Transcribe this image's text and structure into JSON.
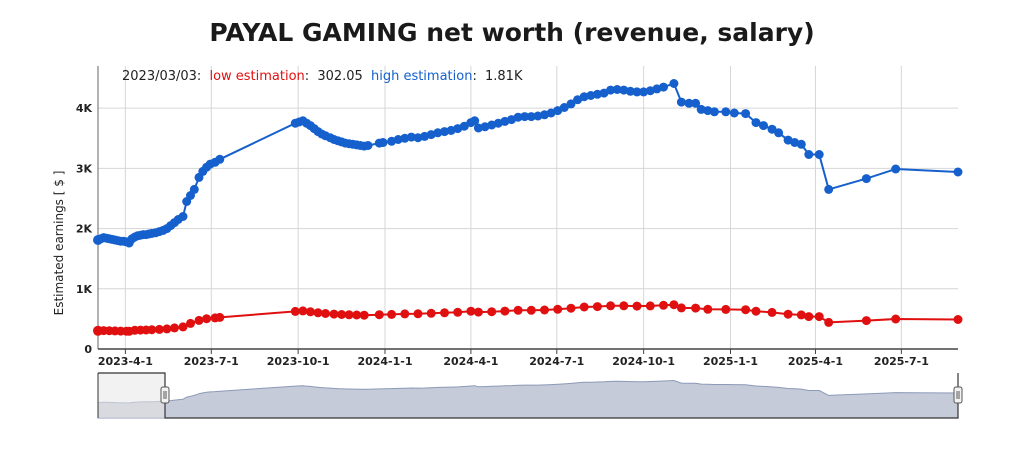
{
  "chart_data": {
    "type": "line",
    "title": "PAYAL GAMING net worth (revenue, salary)",
    "ylabel": "Estimated earnings [ $ ]",
    "ylim": [
      0,
      4700
    ],
    "y_ticks": [
      0,
      1000,
      2000,
      3000,
      4000
    ],
    "y_tick_labels": [
      "0",
      "1K",
      "2K",
      "3K",
      "4K"
    ],
    "xlim": [
      "2023-03-03",
      "2025-08-30"
    ],
    "x_ticks": [
      "2023-04-01",
      "2023-07-01",
      "2023-10-01",
      "2024-01-01",
      "2024-04-01",
      "2024-07-01",
      "2024-10-01",
      "2025-01-01",
      "2025-04-01",
      "2025-07-01"
    ],
    "x_tick_labels": [
      "2023-4-1",
      "2023-7-1",
      "2023-10-1",
      "2024-1-1",
      "2024-4-1",
      "2024-7-1",
      "2024-10-1",
      "2025-1-1",
      "2025-4-1",
      "2025-7-1"
    ],
    "grid": true,
    "legend": {
      "date": "2023/03/03:",
      "low_label": "low estimation",
      "low_value": "302.05",
      "high_label": "high estimation",
      "high_value": "1.81K"
    },
    "series": [
      {
        "name": "high estimation",
        "color": "#1560cc",
        "points": [
          [
            "2023-03-03",
            1810
          ],
          [
            "2023-03-06",
            1830
          ],
          [
            "2023-03-09",
            1850
          ],
          [
            "2023-03-12",
            1840
          ],
          [
            "2023-03-15",
            1830
          ],
          [
            "2023-03-18",
            1820
          ],
          [
            "2023-03-21",
            1810
          ],
          [
            "2023-03-24",
            1800
          ],
          [
            "2023-03-27",
            1790
          ],
          [
            "2023-03-30",
            1790
          ],
          [
            "2023-04-02",
            1780
          ],
          [
            "2023-04-05",
            1760
          ],
          [
            "2023-04-08",
            1830
          ],
          [
            "2023-04-11",
            1860
          ],
          [
            "2023-04-14",
            1880
          ],
          [
            "2023-04-17",
            1890
          ],
          [
            "2023-04-20",
            1900
          ],
          [
            "2023-04-23",
            1900
          ],
          [
            "2023-04-26",
            1910
          ],
          [
            "2023-04-29",
            1920
          ],
          [
            "2023-05-03",
            1930
          ],
          [
            "2023-05-07",
            1950
          ],
          [
            "2023-05-11",
            1970
          ],
          [
            "2023-05-15",
            2000
          ],
          [
            "2023-05-19",
            2050
          ],
          [
            "2023-05-23",
            2100
          ],
          [
            "2023-05-27",
            2150
          ],
          [
            "2023-06-01",
            2200
          ],
          [
            "2023-06-05",
            2450
          ],
          [
            "2023-06-09",
            2550
          ],
          [
            "2023-06-13",
            2650
          ],
          [
            "2023-06-18",
            2850
          ],
          [
            "2023-06-22",
            2950
          ],
          [
            "2023-06-26",
            3020
          ],
          [
            "2023-06-30",
            3070
          ],
          [
            "2023-07-05",
            3100
          ],
          [
            "2023-07-10",
            3150
          ],
          [
            "2023-09-28",
            3750
          ],
          [
            "2023-10-02",
            3770
          ],
          [
            "2023-10-06",
            3790
          ],
          [
            "2023-10-10",
            3750
          ],
          [
            "2023-10-14",
            3710
          ],
          [
            "2023-10-18",
            3660
          ],
          [
            "2023-10-22",
            3610
          ],
          [
            "2023-10-26",
            3570
          ],
          [
            "2023-10-30",
            3540
          ],
          [
            "2023-11-04",
            3510
          ],
          [
            "2023-11-08",
            3480
          ],
          [
            "2023-11-12",
            3460
          ],
          [
            "2023-11-16",
            3440
          ],
          [
            "2023-11-20",
            3420
          ],
          [
            "2023-11-24",
            3410
          ],
          [
            "2023-11-28",
            3400
          ],
          [
            "2023-12-02",
            3390
          ],
          [
            "2023-12-06",
            3380
          ],
          [
            "2023-12-10",
            3370
          ],
          [
            "2023-12-14",
            3380
          ],
          [
            "2023-12-26",
            3420
          ],
          [
            "2023-12-30",
            3430
          ],
          [
            "2024-01-08",
            3450
          ],
          [
            "2024-01-15",
            3480
          ],
          [
            "2024-01-22",
            3500
          ],
          [
            "2024-01-29",
            3520
          ],
          [
            "2024-02-05",
            3510
          ],
          [
            "2024-02-12",
            3530
          ],
          [
            "2024-02-19",
            3560
          ],
          [
            "2024-02-26",
            3590
          ],
          [
            "2024-03-04",
            3610
          ],
          [
            "2024-03-11",
            3630
          ],
          [
            "2024-03-18",
            3660
          ],
          [
            "2024-03-25",
            3700
          ],
          [
            "2024-04-01",
            3760
          ],
          [
            "2024-04-05",
            3790
          ],
          [
            "2024-04-09",
            3670
          ],
          [
            "2024-04-16",
            3690
          ],
          [
            "2024-04-23",
            3720
          ],
          [
            "2024-04-30",
            3750
          ],
          [
            "2024-05-07",
            3780
          ],
          [
            "2024-05-14",
            3810
          ],
          [
            "2024-05-21",
            3850
          ],
          [
            "2024-05-28",
            3860
          ],
          [
            "2024-06-04",
            3860
          ],
          [
            "2024-06-11",
            3870
          ],
          [
            "2024-06-18",
            3890
          ],
          [
            "2024-06-25",
            3920
          ],
          [
            "2024-07-02",
            3960
          ],
          [
            "2024-07-09",
            4010
          ],
          [
            "2024-07-16",
            4070
          ],
          [
            "2024-07-23",
            4140
          ],
          [
            "2024-07-30",
            4190
          ],
          [
            "2024-08-06",
            4210
          ],
          [
            "2024-08-13",
            4230
          ],
          [
            "2024-08-20",
            4250
          ],
          [
            "2024-08-27",
            4300
          ],
          [
            "2024-09-03",
            4310
          ],
          [
            "2024-09-10",
            4300
          ],
          [
            "2024-09-17",
            4280
          ],
          [
            "2024-09-24",
            4270
          ],
          [
            "2024-10-01",
            4270
          ],
          [
            "2024-10-08",
            4290
          ],
          [
            "2024-10-15",
            4320
          ],
          [
            "2024-10-22",
            4350
          ],
          [
            "2024-11-02",
            4410
          ],
          [
            "2024-11-10",
            4100
          ],
          [
            "2024-11-18",
            4080
          ],
          [
            "2024-11-25",
            4080
          ],
          [
            "2024-12-01",
            3980
          ],
          [
            "2024-12-08",
            3960
          ],
          [
            "2024-12-15",
            3940
          ],
          [
            "2024-12-27",
            3940
          ],
          [
            "2025-01-05",
            3920
          ],
          [
            "2025-01-17",
            3910
          ],
          [
            "2025-01-28",
            3760
          ],
          [
            "2025-02-05",
            3710
          ],
          [
            "2025-02-14",
            3650
          ],
          [
            "2025-02-21",
            3590
          ],
          [
            "2025-03-03",
            3470
          ],
          [
            "2025-03-10",
            3430
          ],
          [
            "2025-03-17",
            3400
          ],
          [
            "2025-03-25",
            3230
          ],
          [
            "2025-04-05",
            3230
          ],
          [
            "2025-04-15",
            2650
          ],
          [
            "2025-05-25",
            2830
          ],
          [
            "2025-06-25",
            2990
          ],
          [
            "2025-08-30",
            2940
          ]
        ]
      },
      {
        "name": "low estimation",
        "color": "#e01010",
        "points": [
          [
            "2023-03-03",
            302
          ],
          [
            "2023-03-09",
            305
          ],
          [
            "2023-03-15",
            304
          ],
          [
            "2023-03-21",
            300
          ],
          [
            "2023-03-27",
            298
          ],
          [
            "2023-04-02",
            296
          ],
          [
            "2023-04-05",
            294
          ],
          [
            "2023-04-11",
            310
          ],
          [
            "2023-04-17",
            314
          ],
          [
            "2023-04-23",
            316
          ],
          [
            "2023-04-29",
            320
          ],
          [
            "2023-05-07",
            325
          ],
          [
            "2023-05-15",
            333
          ],
          [
            "2023-05-23",
            350
          ],
          [
            "2023-06-01",
            367
          ],
          [
            "2023-06-09",
            425
          ],
          [
            "2023-06-18",
            475
          ],
          [
            "2023-06-26",
            503
          ],
          [
            "2023-07-05",
            517
          ],
          [
            "2023-07-10",
            525
          ],
          [
            "2023-09-28",
            625
          ],
          [
            "2023-10-06",
            632
          ],
          [
            "2023-10-14",
            618
          ],
          [
            "2023-10-22",
            602
          ],
          [
            "2023-10-30",
            590
          ],
          [
            "2023-11-08",
            580
          ],
          [
            "2023-11-16",
            573
          ],
          [
            "2023-11-24",
            568
          ],
          [
            "2023-12-02",
            565
          ],
          [
            "2023-12-10",
            562
          ],
          [
            "2023-12-26",
            570
          ],
          [
            "2024-01-08",
            575
          ],
          [
            "2024-01-22",
            583
          ],
          [
            "2024-02-05",
            585
          ],
          [
            "2024-02-19",
            593
          ],
          [
            "2024-03-04",
            602
          ],
          [
            "2024-03-18",
            610
          ],
          [
            "2024-04-01",
            627
          ],
          [
            "2024-04-09",
            612
          ],
          [
            "2024-04-23",
            620
          ],
          [
            "2024-05-07",
            630
          ],
          [
            "2024-05-21",
            642
          ],
          [
            "2024-06-04",
            643
          ],
          [
            "2024-06-18",
            648
          ],
          [
            "2024-07-02",
            660
          ],
          [
            "2024-07-16",
            678
          ],
          [
            "2024-07-30",
            698
          ],
          [
            "2024-08-13",
            705
          ],
          [
            "2024-08-27",
            717
          ],
          [
            "2024-09-10",
            717
          ],
          [
            "2024-09-24",
            712
          ],
          [
            "2024-10-08",
            715
          ],
          [
            "2024-10-22",
            725
          ],
          [
            "2024-11-02",
            735
          ],
          [
            "2024-11-10",
            683
          ],
          [
            "2024-11-25",
            680
          ],
          [
            "2024-12-08",
            660
          ],
          [
            "2024-12-27",
            657
          ],
          [
            "2025-01-17",
            652
          ],
          [
            "2025-01-28",
            627
          ],
          [
            "2025-02-14",
            608
          ],
          [
            "2025-03-03",
            578
          ],
          [
            "2025-03-17",
            567
          ],
          [
            "2025-03-25",
            538
          ],
          [
            "2025-04-05",
            538
          ],
          [
            "2025-04-15",
            442
          ],
          [
            "2025-05-25",
            472
          ],
          [
            "2025-06-25",
            498
          ],
          [
            "2025-08-30",
            490
          ]
        ]
      }
    ]
  }
}
